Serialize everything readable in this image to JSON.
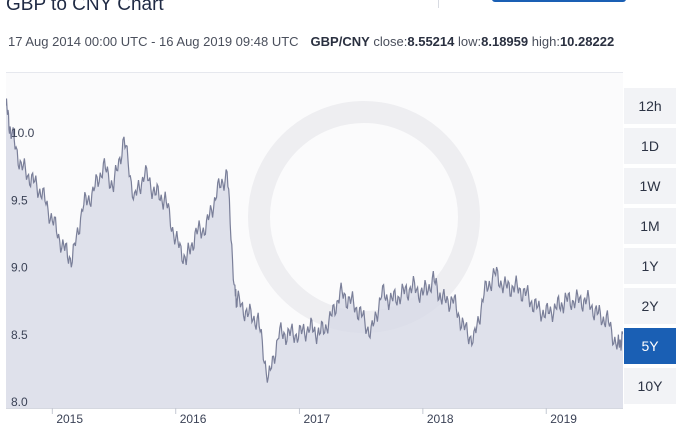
{
  "header": {
    "title": "GBP to CNY Chart",
    "date_range": "17 Aug 2014 00:00 UTC - 16 Aug 2019 09:48 UTC",
    "pair": "GBP/CNY",
    "close_label": "close:",
    "close_value": "8.55214",
    "low_label": "low:",
    "low_value": "8.18959",
    "high_label": "high:",
    "high_value": "10.28222"
  },
  "ranges": [
    {
      "label": "12h",
      "active": false
    },
    {
      "label": "1D",
      "active": false
    },
    {
      "label": "1W",
      "active": false
    },
    {
      "label": "1M",
      "active": false
    },
    {
      "label": "1Y",
      "active": false
    },
    {
      "label": "2Y",
      "active": false
    },
    {
      "label": "5Y",
      "active": true
    },
    {
      "label": "10Y",
      "active": false
    }
  ],
  "colors": {
    "line": "#7a7f99",
    "fill": "#d6d8e6",
    "accent": "#1a5fb4"
  },
  "chart_data": {
    "type": "area",
    "title": "GBP to CNY Chart",
    "xlabel": "",
    "ylabel": "",
    "ylim": [
      8.0,
      10.5
    ],
    "xlim": [
      "2014-08-17",
      "2019-08-16"
    ],
    "y_ticks": [
      "8.0",
      "8.5",
      "9.0",
      "9.5",
      "10.0"
    ],
    "x_ticks": [
      "2015",
      "2016",
      "2017",
      "2018",
      "2019"
    ],
    "grid": false,
    "series": [
      {
        "name": "GBP/CNY",
        "x": [
          "2014-08-17",
          "2014-09-01",
          "2014-10-01",
          "2014-11-01",
          "2014-12-01",
          "2015-01-01",
          "2015-02-01",
          "2015-03-01",
          "2015-04-01",
          "2015-05-01",
          "2015-06-01",
          "2015-07-01",
          "2015-08-01",
          "2015-09-01",
          "2015-10-01",
          "2015-11-01",
          "2015-12-01",
          "2016-01-01",
          "2016-02-01",
          "2016-03-01",
          "2016-04-01",
          "2016-05-01",
          "2016-06-01",
          "2016-06-24",
          "2016-07-01",
          "2016-08-01",
          "2016-09-01",
          "2016-10-01",
          "2016-11-01",
          "2016-12-01",
          "2017-01-01",
          "2017-02-01",
          "2017-03-01",
          "2017-04-01",
          "2017-05-01",
          "2017-06-01",
          "2017-07-01",
          "2017-08-01",
          "2017-09-01",
          "2017-10-01",
          "2017-11-01",
          "2017-12-01",
          "2018-01-01",
          "2018-02-01",
          "2018-03-01",
          "2018-04-01",
          "2018-05-01",
          "2018-06-01",
          "2018-07-01",
          "2018-08-01",
          "2018-09-01",
          "2018-10-01",
          "2018-11-01",
          "2018-12-01",
          "2019-01-01",
          "2019-02-01",
          "2019-03-01",
          "2019-04-01",
          "2019-05-01",
          "2019-06-01",
          "2019-07-01",
          "2019-08-01",
          "2019-08-16"
        ],
        "y": [
          10.25,
          10.05,
          9.8,
          9.7,
          9.6,
          9.4,
          9.2,
          9.1,
          9.5,
          9.6,
          9.8,
          9.65,
          10.0,
          9.55,
          9.75,
          9.6,
          9.55,
          9.25,
          9.1,
          9.3,
          9.35,
          9.6,
          9.75,
          8.85,
          8.8,
          8.7,
          8.65,
          8.2,
          8.55,
          8.55,
          8.55,
          8.6,
          8.55,
          8.65,
          8.85,
          8.8,
          8.7,
          8.55,
          8.85,
          8.8,
          8.85,
          8.9,
          8.85,
          8.95,
          8.8,
          8.8,
          8.6,
          8.5,
          8.85,
          9.0,
          8.9,
          8.9,
          8.85,
          8.75,
          8.7,
          8.75,
          8.8,
          8.8,
          8.8,
          8.7,
          8.65,
          8.45,
          8.55
        ]
      }
    ]
  }
}
